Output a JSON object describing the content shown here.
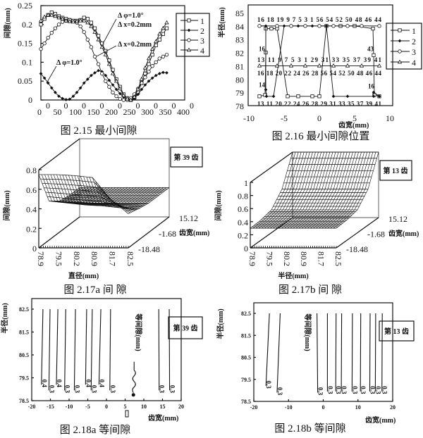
{
  "chart_data": [
    {
      "type": "line",
      "caption": "图 2.15 最小间隙",
      "ylabel": "间隙(mm)",
      "xlabel": "",
      "xlim": [
        0,
        400
      ],
      "ylim": [
        0,
        0.25
      ],
      "x_ticks": [
        0,
        50,
        100,
        150,
        200,
        250,
        300,
        350,
        400
      ],
      "x_tick_labels": [
        "0",
        "50",
        "100",
        "150",
        "200",
        "250",
        "300",
        "350",
        "400"
      ],
      "x_tick_suffix": "0",
      "y_ticks": [
        0.25,
        0.2,
        0.15,
        0.1,
        0.05,
        0
      ],
      "y_tick_labels": [
        "0.25",
        "0.2",
        "0.15",
        "0.1",
        "0.05",
        "0"
      ],
      "legend_position": "right",
      "grid": false,
      "x": [
        0,
        10,
        20,
        30,
        40,
        50,
        60,
        70,
        80,
        90,
        100,
        110,
        120,
        130,
        140,
        150,
        160,
        170,
        180,
        190,
        200,
        210,
        220,
        230,
        240,
        250,
        260,
        270,
        280,
        290,
        300,
        310,
        320,
        330,
        340,
        350
      ],
      "series": [
        {
          "name": "1",
          "marker": "square",
          "y": [
            0.2,
            0.215,
            0.225,
            0.232,
            0.228,
            0.222,
            0.218,
            0.215,
            0.212,
            0.21,
            0.21,
            0.212,
            0.218,
            0.215,
            0.205,
            0.19,
            0.17,
            0.15,
            0.13,
            0.105,
            0.08,
            0.055,
            0.035,
            0.015,
            0.005,
            0.0,
            0.005,
            0.02,
            0.045,
            0.07,
            0.095,
            0.12,
            0.145,
            0.16,
            0.175,
            0.19
          ]
        },
        {
          "name": "2",
          "marker": "diamond",
          "y": [
            0.07,
            0.058,
            0.045,
            0.032,
            0.02,
            0.01,
            0.004,
            0.001,
            0.002,
            0.01,
            0.02,
            0.032,
            0.045,
            0.055,
            0.065,
            0.072,
            0.078,
            0.075,
            0.065,
            0.052,
            0.04,
            0.028,
            0.017,
            0.008,
            0.002,
            0.0,
            0.004,
            0.015,
            0.028,
            0.04,
            0.05,
            0.058,
            0.065,
            0.07,
            0.073,
            0.072
          ]
        },
        {
          "name": "3",
          "marker": "circle",
          "y": [
            0.135,
            0.15,
            0.165,
            0.178,
            0.19,
            0.2,
            0.207,
            0.21,
            0.212,
            0.21,
            0.205,
            0.195,
            0.18,
            0.16,
            0.14,
            0.115,
            0.095,
            0.07,
            0.05,
            0.035,
            0.02,
            0.01,
            0.003,
            0.0,
            0.0,
            0.005,
            0.015,
            0.03,
            0.045,
            0.06,
            0.075,
            0.09,
            0.1,
            0.11,
            0.115,
            0.12
          ]
        },
        {
          "name": "4",
          "marker": "triangle",
          "y": [
            0.21,
            0.22,
            0.225,
            0.225,
            0.222,
            0.218,
            0.215,
            0.21,
            0.208,
            0.207,
            0.208,
            0.21,
            0.21,
            0.205,
            0.195,
            0.18,
            0.16,
            0.14,
            0.12,
            0.095,
            0.07,
            0.05,
            0.03,
            0.012,
            0.003,
            0.0,
            0.008,
            0.028,
            0.055,
            0.085,
            0.11,
            0.135,
            0.155,
            0.175,
            0.19,
            0.205
          ]
        }
      ],
      "annotations": [
        "Δ φ=1.0°",
        "Δ x=0.2mm",
        "Δ x=0.2mm",
        "Δ φ=1.0°"
      ]
    },
    {
      "type": "line",
      "caption": "图 2.16 最小间隙位置",
      "xlabel": "齿宽(mm)",
      "ylabel": "半径(mm)",
      "xlim": [
        -10,
        10
      ],
      "ylim": [
        78,
        85
      ],
      "x_ticks": [
        -10,
        -5,
        0,
        5,
        10
      ],
      "x_tick_labels": [
        "-10",
        "-5",
        "0",
        "5",
        "10"
      ],
      "y_ticks": [
        85,
        84,
        83,
        82,
        81,
        80,
        79,
        78
      ],
      "y_tick_labels": [
        "85",
        "84",
        "83",
        "82",
        "81",
        "80",
        "79",
        "78"
      ],
      "legend_position": "right",
      "series": [
        {
          "name": "1",
          "marker": "square",
          "points": [
            [
              -8.5,
              78.7
            ],
            [
              -7.7,
              78.8
            ],
            [
              -7.6,
              82
            ],
            [
              -7.6,
              83.8
            ],
            [
              -6.8,
              83.8
            ],
            [
              -6,
              83.8
            ],
            [
              -4.5,
              78.7
            ],
            [
              -3,
              78.7
            ],
            [
              -1,
              78.7
            ],
            [
              0,
              78.7
            ],
            [
              1,
              84
            ],
            [
              3,
              84
            ],
            [
              5,
              84
            ],
            [
              7.6,
              83.8
            ],
            [
              7.7,
              81.8
            ],
            [
              7.8,
              78.8
            ],
            [
              8.5,
              78.7
            ]
          ]
        },
        {
          "name": "2",
          "marker": "diamond",
          "points": [
            [
              -8.5,
              84
            ],
            [
              -7.6,
              84
            ],
            [
              -7.6,
              79.2
            ],
            [
              -7.5,
              78.7
            ],
            [
              -6.5,
              78.7
            ],
            [
              -5,
              84
            ],
            [
              -3,
              84
            ],
            [
              -1,
              84
            ],
            [
              1,
              84
            ],
            [
              2,
              78.7
            ],
            [
              4,
              78.7
            ],
            [
              7.7,
              78.7
            ],
            [
              7.7,
              79
            ],
            [
              8.5,
              78.7
            ]
          ]
        },
        {
          "name": "3",
          "marker": "circle",
          "points": [
            [
              -8.5,
              84
            ],
            [
              -6,
              84
            ],
            [
              -4,
              84
            ],
            [
              -2,
              84
            ],
            [
              0,
              84
            ],
            [
              2,
              84
            ],
            [
              4,
              84
            ],
            [
              6,
              84
            ],
            [
              8.5,
              84
            ]
          ]
        },
        {
          "name": "4",
          "marker": "triangle",
          "points": [
            [
              -8.5,
              81
            ],
            [
              -6,
              81
            ],
            [
              -4,
              81
            ],
            [
              -2,
              81
            ],
            [
              0,
              81
            ],
            [
              2,
              81
            ],
            [
              4,
              81
            ],
            [
              6,
              81
            ],
            [
              8.5,
              81
            ]
          ]
        }
      ],
      "point_labels": {
        "row_84_above": "16 18 19  9  7 5  3   1 56 54 52 50 48 46 44",
        "row_81_above": "13  11  9  7 5  3  1 29 31 33 35 37 39 41",
        "row_81_below": "16 18 20 22 24 26 28  56 54 52 50 48 46 44",
        "row_787_below": "13 11    20 22 24 26 28 29 31 33 35 37 39 41",
        "left_82": "16",
        "right_82": "43",
        "left_79": "14",
        "right_79": "16"
      }
    },
    {
      "type": "surface",
      "caption": "图 2.17a 间 隙",
      "zlabel": "间隙(mm)",
      "xlabel": "直径(mm)",
      "ylabel": "齿宽(mm)",
      "legend_text": "第 39 齿",
      "x_tick_labels": [
        "78.9",
        "79.5",
        "80.2",
        "80.9",
        "81.7",
        "82.5"
      ],
      "y_tick_labels": [
        "-18.48",
        "-1.68",
        "15.12"
      ],
      "z_ticks": [
        0,
        0.2,
        0.4,
        0.6,
        0.8
      ],
      "z_tick_labels": [
        "0",
        "0.2",
        "0.4",
        "0.6",
        "0.8"
      ],
      "zlim": [
        0,
        0.8
      ],
      "z_grid": [
        [
          0.75,
          0.75,
          0.74,
          0.72,
          0.5,
          0.35
        ],
        [
          0.4,
          0.38,
          0.36,
          0.35,
          0.33,
          0.32
        ],
        [
          0.32,
          0.31,
          0.3,
          0.3,
          0.3,
          0.3
        ],
        [
          0.3,
          0.3,
          0.3,
          0.3,
          0.3,
          0.3
        ],
        [
          0.3,
          0.3,
          0.3,
          0.3,
          0.3,
          0.3
        ]
      ]
    },
    {
      "type": "surface",
      "caption": "图 2.17b 间 隙",
      "zlabel": "间隙(mm)",
      "xlabel": "半径(mm)",
      "ylabel": "齿宽(mm)",
      "legend_text": "第 13 齿",
      "x_tick_labels": [
        "78.9",
        "79.5",
        "80.2",
        "80.9",
        "81.7",
        "82.5"
      ],
      "y_tick_labels": [
        "-18.48",
        "-1.68",
        "15.12"
      ],
      "z_ticks": [
        0,
        0.2,
        0.4,
        0.6,
        0.8,
        1
      ],
      "z_tick_labels": [
        "0",
        "0.2",
        "0.4",
        "0.6",
        "0.8",
        "1"
      ],
      "zlim": [
        0,
        1
      ],
      "z_grid": [
        [
          0.3,
          0.3,
          0.3,
          0.3,
          0.3,
          0.3
        ],
        [
          0.31,
          0.31,
          0.31,
          0.31,
          0.31,
          0.31
        ],
        [
          0.35,
          0.35,
          0.35,
          0.35,
          0.35,
          0.35
        ],
        [
          0.55,
          0.55,
          0.55,
          0.55,
          0.55,
          0.55
        ],
        [
          1.0,
          1.0,
          1.0,
          1.0,
          1.0,
          1.0
        ]
      ]
    },
    {
      "type": "contour",
      "caption": "图 2.18a 等间隙",
      "xlabel": "齿宽(mm)",
      "ylabel": "半径(mm)",
      "inplot_label": "等间隙(mm)",
      "legend_text": "第 39 齿",
      "xlim": [
        -20,
        20
      ],
      "ylim": [
        78.5,
        82.95
      ],
      "x_ticks": [
        -20,
        -15,
        -10,
        -5,
        0,
        5,
        10,
        15,
        20
      ],
      "x_tick_labels": [
        "-20",
        "-15",
        "-10",
        "-5",
        "0",
        "5",
        "10",
        "15",
        "20"
      ],
      "y_ticks": [
        82.5,
        81.5,
        80.5,
        79.5,
        78.5
      ],
      "y_tick_labels": [
        "82.5",
        "81.5",
        "80.5",
        "79.5",
        "78.5"
      ],
      "lines": [
        {
          "x_top": -17.0,
          "x_bottom": -17.4,
          "r_bottom": 79.2,
          "label": "0.4"
        },
        {
          "x_top": -15.1,
          "x_bottom": -15.4,
          "r_bottom": 78.95,
          "label": "0.3"
        },
        {
          "x_top": -13.0,
          "x_bottom": -13.4,
          "r_bottom": 79.2,
          "label": "0.4"
        },
        {
          "x_top": -10.9,
          "x_bottom": -11.2,
          "r_bottom": 78.95,
          "label": "0.3"
        },
        {
          "x_top": -8.3,
          "x_bottom": -8.6,
          "r_bottom": 78.95,
          "label": "0.3"
        },
        {
          "x_top": -5.3,
          "x_bottom": -5.6,
          "r_bottom": 79.2,
          "label": "0.4"
        },
        {
          "x_top": -3.8,
          "x_bottom": -4.1,
          "r_bottom": 78.95,
          "label": "0.3"
        },
        {
          "x_top": -1.5,
          "x_bottom": -2.0,
          "r_bottom": 79.2,
          "label": "0.4"
        },
        {
          "x_top": 1.1,
          "x_bottom": 0.9,
          "r_bottom": 78.95,
          "label": "0.3"
        },
        {
          "x_top": 14.0,
          "x_bottom": 14.1,
          "r_bottom": 78.95,
          "label": "0.3"
        },
        {
          "x_top": 16.8,
          "x_bottom": 16.9,
          "r_bottom": 78.95,
          "label": "0.3"
        }
      ]
    },
    {
      "type": "contour",
      "caption": "图 2.18b 等间隙",
      "xlabel": "齿宽(mm)",
      "ylabel": "半径(mm)",
      "inplot_label": "等间隙(mm)",
      "legend_text": "第 13 齿",
      "xlim": [
        -20,
        20
      ],
      "ylim": [
        78.5,
        82.98
      ],
      "x_ticks": [
        -20,
        -10,
        0,
        10,
        20
      ],
      "x_tick_labels": [
        "-20",
        "-10",
        "0",
        "10",
        "20"
      ],
      "y_ticks": [
        82.5,
        81.5,
        80.5,
        79.5,
        78.5
      ],
      "y_tick_labels": [
        "82.5",
        "81.5",
        "80.5",
        "79.5",
        "78.5"
      ],
      "lines": [
        {
          "x_top": -15.5,
          "x_bottom": -16.5,
          "r_bottom": 79.2,
          "label": "0.3"
        },
        {
          "x_top": -12.4,
          "x_bottom": -13.3,
          "r_bottom": 78.9,
          "label": "0.3"
        },
        {
          "x_top": -1.8,
          "x_bottom": -1.6,
          "r_bottom": 78.9,
          "label": "0.3"
        },
        {
          "x_top": 1.2,
          "x_bottom": 1.2,
          "r_bottom": 78.95,
          "label": "0.3"
        },
        {
          "x_top": 3.7,
          "x_bottom": 3.6,
          "r_bottom": 78.95,
          "label": "0.3"
        },
        {
          "x_top": 5.3,
          "x_bottom": 5.2,
          "r_bottom": 78.95,
          "label": "0.3"
        },
        {
          "x_top": 8.4,
          "x_bottom": 8.3,
          "r_bottom": 78.95,
          "label": "0.3"
        },
        {
          "x_top": 10.8,
          "x_bottom": 10.7,
          "r_bottom": 78.95,
          "label": "0.3"
        },
        {
          "x_top": 13.5,
          "x_bottom": 13.4,
          "r_bottom": 78.95,
          "label": "0.3"
        },
        {
          "x_top": 15.1,
          "x_bottom": 15.0,
          "r_bottom": 78.95,
          "label": "0.3"
        },
        {
          "x_top": 17.0,
          "x_bottom": 16.9,
          "r_bottom": 78.95,
          "label": "0.3"
        }
      ]
    }
  ]
}
